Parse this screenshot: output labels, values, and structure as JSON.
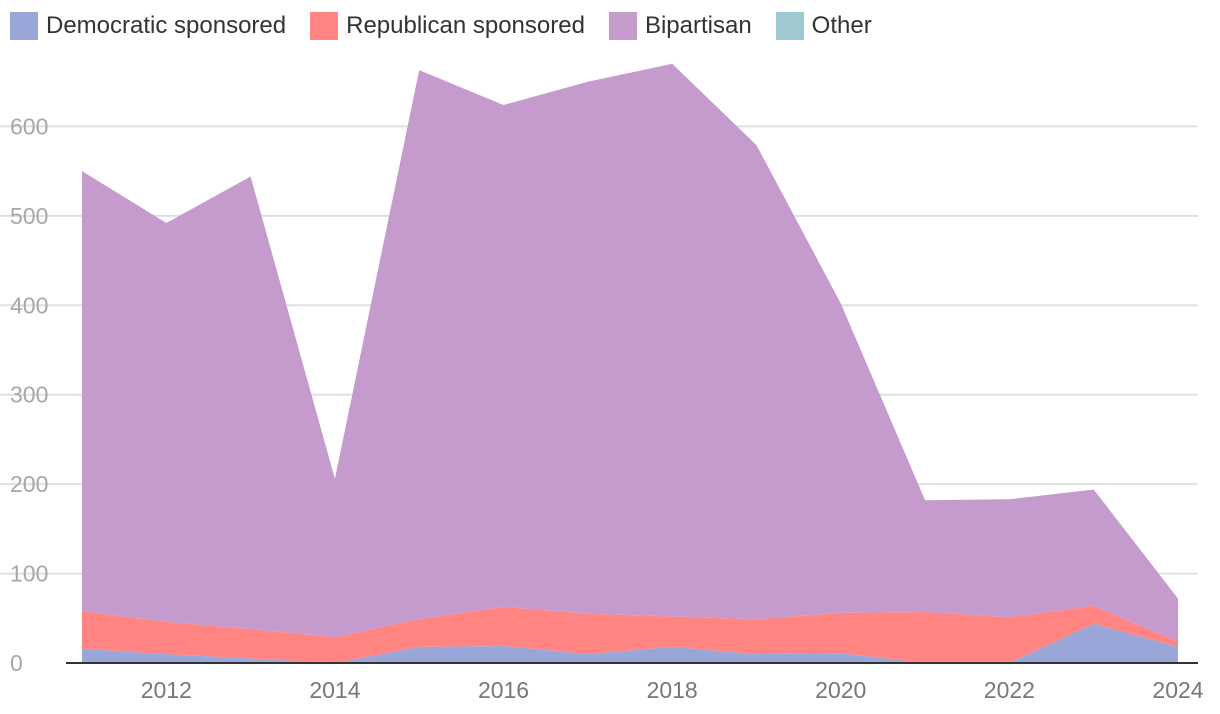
{
  "chart_data": {
    "type": "area",
    "stacked": true,
    "x": [
      2011,
      2012,
      2013,
      2014,
      2015,
      2016,
      2017,
      2018,
      2019,
      2020,
      2021,
      2022,
      2023,
      2024
    ],
    "series": [
      {
        "name": "Democratic sponsored",
        "color": "#9aa6d7",
        "values": [
          16,
          10,
          5,
          0,
          18,
          19,
          10,
          18,
          10,
          11,
          0,
          0,
          44,
          18
        ]
      },
      {
        "name": "Republican sponsored",
        "color": "#ff8482",
        "values": [
          42,
          36,
          33,
          29,
          31,
          44,
          45,
          34,
          39,
          45,
          57,
          51,
          20,
          6
        ]
      },
      {
        "name": "Bipartisan",
        "color": "#c59bce",
        "values": [
          492,
          446,
          506,
          177,
          614,
          561,
          595,
          618,
          530,
          346,
          125,
          132,
          130,
          48
        ]
      },
      {
        "name": "Other",
        "color": "#9ec9d0",
        "values": [
          0,
          0,
          0,
          0,
          0,
          0,
          0,
          0,
          0,
          0,
          0,
          0,
          0,
          0
        ]
      }
    ],
    "x_ticks": [
      "2012",
      "2014",
      "2016",
      "2018",
      "2020",
      "2022",
      "2024"
    ],
    "y_ticks": [
      "0",
      "100",
      "200",
      "300",
      "400",
      "500",
      "600"
    ],
    "xlim": [
      2011,
      2024
    ],
    "ylim": [
      0,
      700
    ],
    "grid": true,
    "legend_position": "top-left"
  }
}
